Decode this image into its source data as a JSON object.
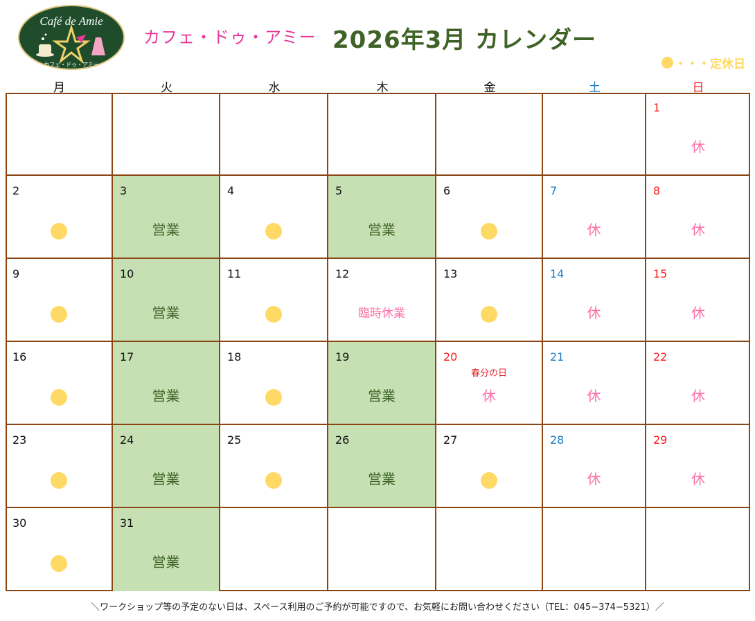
{
  "header": {
    "logo_text": "Café de Amie",
    "logo_subtext": "カフェ・ドゥ・アミー",
    "brand_kana": "カフェ・ドゥ・アミー",
    "title": "2026年3月  カレンダー",
    "legend_text": "・・・定休日"
  },
  "colors": {
    "border": "#8b4513",
    "open_bg": "#c6e0b4",
    "open_text": "#3f6327",
    "closed_text": "#ff6fa8",
    "dot": "#ffd966",
    "saturday": "#1f7cc4",
    "sunday": "#ff1a1a",
    "title": "#3f6327",
    "brand": "#e8389a"
  },
  "weekdays": [
    "月",
    "火",
    "水",
    "木",
    "金",
    "土",
    "日"
  ],
  "weeks": [
    [
      {
        "day": "",
        "type": "empty"
      },
      {
        "day": "",
        "type": "empty"
      },
      {
        "day": "",
        "type": "empty"
      },
      {
        "day": "",
        "type": "empty"
      },
      {
        "day": "",
        "type": "empty"
      },
      {
        "day": "",
        "type": "empty"
      },
      {
        "day": "1",
        "type": "closed",
        "label": "休"
      }
    ],
    [
      {
        "day": "2",
        "type": "regular_holiday"
      },
      {
        "day": "3",
        "type": "open",
        "label": "営業"
      },
      {
        "day": "4",
        "type": "regular_holiday"
      },
      {
        "day": "5",
        "type": "open",
        "label": "営業"
      },
      {
        "day": "6",
        "type": "regular_holiday"
      },
      {
        "day": "7",
        "type": "closed",
        "label": "休"
      },
      {
        "day": "8",
        "type": "closed",
        "label": "休"
      }
    ],
    [
      {
        "day": "9",
        "type": "regular_holiday"
      },
      {
        "day": "10",
        "type": "open",
        "label": "営業"
      },
      {
        "day": "11",
        "type": "regular_holiday"
      },
      {
        "day": "12",
        "type": "temp_closed",
        "label": "臨時休業"
      },
      {
        "day": "13",
        "type": "regular_holiday"
      },
      {
        "day": "14",
        "type": "closed",
        "label": "休"
      },
      {
        "day": "15",
        "type": "closed",
        "label": "休"
      }
    ],
    [
      {
        "day": "16",
        "type": "regular_holiday"
      },
      {
        "day": "17",
        "type": "open",
        "label": "営業"
      },
      {
        "day": "18",
        "type": "regular_holiday"
      },
      {
        "day": "19",
        "type": "open",
        "label": "営業"
      },
      {
        "day": "20",
        "type": "closed",
        "label": "休",
        "holiday": "春分の日",
        "red": true
      },
      {
        "day": "21",
        "type": "closed",
        "label": "休"
      },
      {
        "day": "22",
        "type": "closed",
        "label": "休"
      }
    ],
    [
      {
        "day": "23",
        "type": "regular_holiday"
      },
      {
        "day": "24",
        "type": "open",
        "label": "営業"
      },
      {
        "day": "25",
        "type": "regular_holiday"
      },
      {
        "day": "26",
        "type": "open",
        "label": "営業"
      },
      {
        "day": "27",
        "type": "regular_holiday"
      },
      {
        "day": "28",
        "type": "closed",
        "label": "休"
      },
      {
        "day": "29",
        "type": "closed",
        "label": "休"
      }
    ],
    [
      {
        "day": "30",
        "type": "regular_holiday"
      },
      {
        "day": "31",
        "type": "open",
        "label": "営業"
      },
      {
        "day": "",
        "type": "empty"
      },
      {
        "day": "",
        "type": "empty"
      },
      {
        "day": "",
        "type": "empty"
      },
      {
        "day": "",
        "type": "empty"
      },
      {
        "day": "",
        "type": "empty"
      }
    ]
  ],
  "footer": {
    "note": "＼ワークショップ等の予定のない日は、スペース利用のご予約が可能ですので、お気軽にお問い合わせください（TEL：045−374−5321）／"
  }
}
